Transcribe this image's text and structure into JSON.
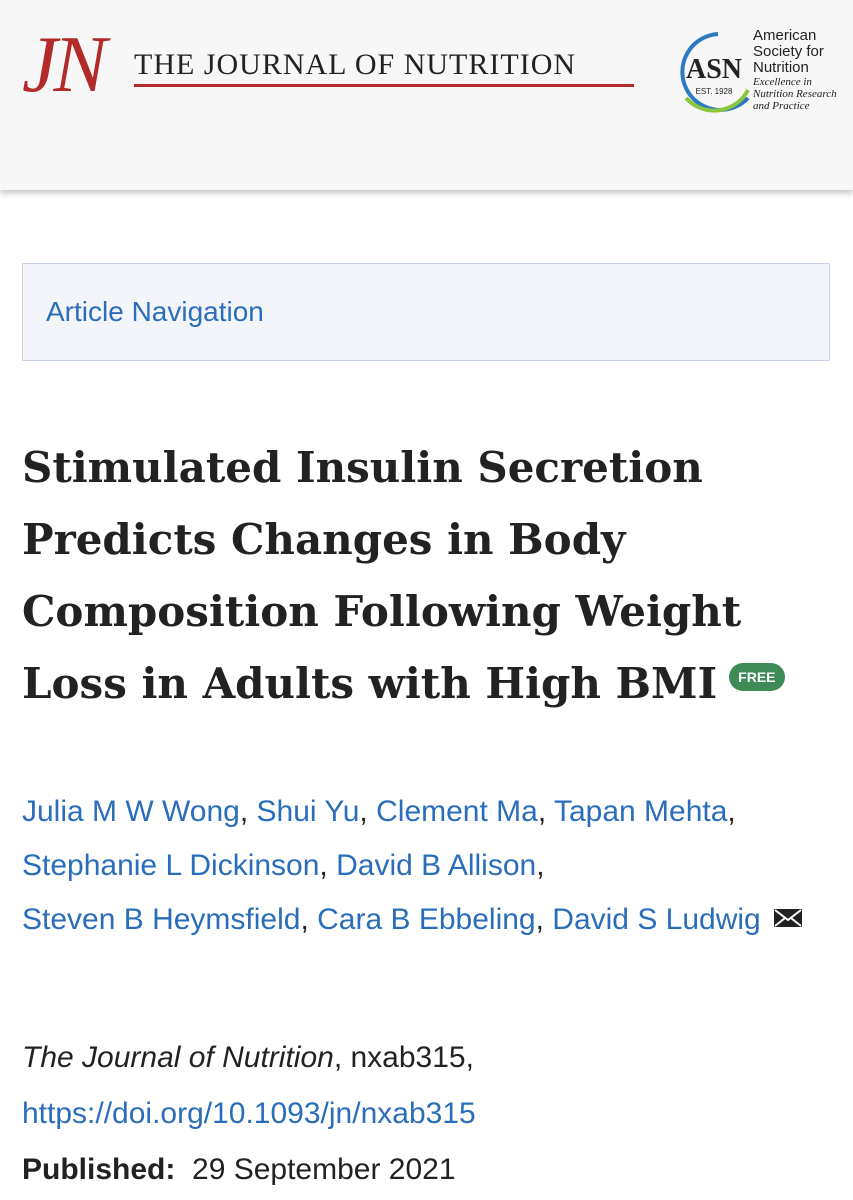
{
  "header": {
    "logo_mark": "JN",
    "journal_name": "THE JOURNAL OF NUTRITION",
    "society_abbr": "ASN",
    "society_est": "EST. 1928",
    "society_name": [
      "American",
      "Society for",
      "Nutrition"
    ],
    "society_tagline": [
      "Excellence in",
      "Nutrition Research",
      "and Practice"
    ]
  },
  "navigation": {
    "label": "Article Navigation"
  },
  "article": {
    "title": "Stimulated Insulin Secretion Predicts Changes in Body Composition Following Weight Loss in Adults with High BMI",
    "badge": "FREE",
    "authors": [
      "Julia M W Wong",
      "Shui Yu",
      "Clement Ma",
      "Tapan Mehta",
      "Stephanie L Dickinson",
      "David B Allison",
      "Steven B Heymsfield",
      "Cara B Ebbeling",
      "David S Ludwig"
    ],
    "author_separator": ",",
    "citation": {
      "journal": "The Journal of Nutrition",
      "rest": ", nxab315,"
    },
    "doi": "https://doi.org/10.1093/jn/nxab315",
    "published_label": "Published:",
    "published_date": "29 September 2021"
  }
}
